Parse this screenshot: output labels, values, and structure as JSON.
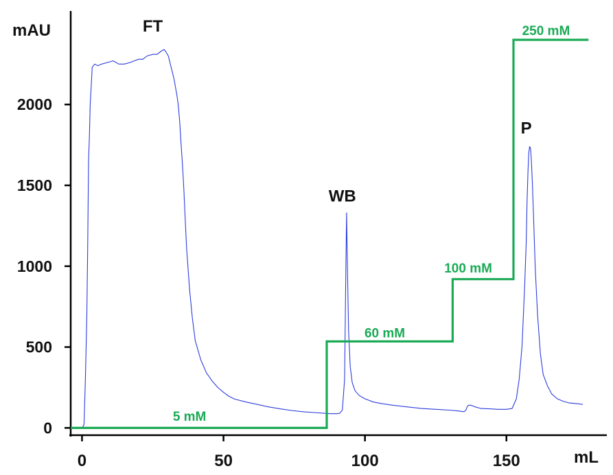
{
  "chart_data": {
    "type": "line",
    "title": "",
    "xlabel": "mL",
    "ylabel": "mAU",
    "xlim": [
      -4,
      185
    ],
    "ylim": [
      -45,
      2540
    ],
    "grid": false,
    "x_ticks": [
      "0",
      "50",
      "100",
      "150"
    ],
    "y_ticks": [
      "0",
      "500",
      "1000",
      "1500",
      "2000"
    ],
    "colors": {
      "absorbance": "#2b3bdd",
      "gradient": "#1aaa55",
      "axis": "#000000"
    },
    "series": [
      {
        "role": "absorbance",
        "x": [
          0,
          0.7,
          1.2,
          1.7,
          2,
          2.3,
          2.6,
          2.9,
          3.2,
          3.6,
          4.5,
          5.5,
          7,
          9,
          11,
          13,
          15,
          17,
          18.5,
          20,
          21.5,
          23,
          25,
          26.5,
          28,
          29,
          29.5,
          30.5,
          31.5,
          32.5,
          33.5,
          34,
          34.5,
          35,
          35.5,
          36,
          36.5,
          37,
          38,
          39,
          40,
          42,
          44,
          46,
          48,
          50,
          52,
          54,
          58,
          62,
          66,
          70,
          74,
          78,
          82,
          86,
          88,
          90,
          91,
          92,
          92.8,
          93.2,
          93.5,
          93.8,
          94.2,
          94.8,
          95.5,
          96.5,
          98,
          100,
          103,
          106,
          110,
          115,
          120,
          125,
          130,
          133,
          135,
          135.7,
          136,
          136.5,
          137.5,
          139,
          141,
          144,
          147,
          150,
          152,
          153.5,
          154.5,
          155.5,
          156,
          156.5,
          157,
          157.3,
          157.6,
          157.9,
          158.2,
          158.5,
          158.8,
          159.2,
          159.7,
          160.2,
          161,
          162,
          163,
          164.5,
          166,
          168,
          170,
          172,
          175,
          177
        ],
        "y": [
          0,
          20,
          300,
          700,
          1100,
          1650,
          1800,
          2000,
          2100,
          2230,
          2250,
          2240,
          2250,
          2260,
          2270,
          2250,
          2250,
          2260,
          2270,
          2280,
          2280,
          2300,
          2310,
          2310,
          2330,
          2340,
          2330,
          2300,
          2230,
          2160,
          2060,
          2000,
          1900,
          1760,
          1630,
          1470,
          1280,
          1100,
          860,
          680,
          540,
          420,
          340,
          290,
          250,
          220,
          195,
          178,
          160,
          145,
          130,
          118,
          108,
          100,
          95,
          90,
          88,
          88,
          90,
          110,
          300,
          900,
          1330,
          1000,
          600,
          380,
          280,
          230,
          200,
          180,
          160,
          150,
          140,
          130,
          120,
          115,
          110,
          105,
          100,
          110,
          125,
          140,
          140,
          130,
          120,
          118,
          115,
          115,
          120,
          180,
          300,
          500,
          700,
          900,
          1150,
          1400,
          1580,
          1700,
          1740,
          1730,
          1660,
          1500,
          1250,
          980,
          700,
          460,
          330,
          260,
          210,
          180,
          165,
          155,
          150,
          145
        ]
      },
      {
        "role": "gradient",
        "x": [
          -4,
          86.5,
          86.5,
          131,
          131,
          152.5,
          152.5,
          179
        ],
        "y": [
          0,
          0,
          535,
          535,
          920,
          920,
          2400,
          2400
        ]
      }
    ],
    "annotations": [
      {
        "text": "FT",
        "x": 25,
        "y": 2450
      },
      {
        "text": "WB",
        "x": 92,
        "y": 1400
      },
      {
        "text": "P",
        "x": 157,
        "y": 1820
      },
      {
        "text": "5 mM",
        "x": 38,
        "y": 45
      },
      {
        "text": "60 mM",
        "x": 107,
        "y": 560
      },
      {
        "text": "100 mM",
        "x": 136.5,
        "y": 960
      },
      {
        "text": "250 mM",
        "x": 164,
        "y": 2430
      }
    ]
  }
}
